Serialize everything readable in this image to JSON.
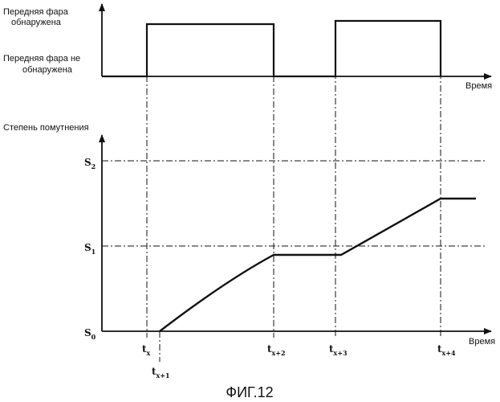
{
  "top_chart": {
    "state_high_label_line1": "Передняя фара",
    "state_high_label_line2": "обнаружена",
    "state_low_label_line1": "Передняя фара не",
    "state_low_label_line2": "обнаружена",
    "x_axis_label": "Время"
  },
  "bottom_chart": {
    "y_axis_label": "Степень помутнения",
    "x_axis_label": "Время",
    "levels": [
      {
        "symbol": "S",
        "sub": "2"
      },
      {
        "symbol": "S",
        "sub": "1"
      },
      {
        "symbol": "S",
        "sub": "0"
      }
    ],
    "time_marks": [
      {
        "symbol": "t",
        "sub": "x"
      },
      {
        "symbol": "t",
        "sub": "x+1"
      },
      {
        "symbol": "t",
        "sub": "x+2"
      },
      {
        "symbol": "t",
        "sub": "x+3"
      },
      {
        "symbol": "t",
        "sub": "x+4"
      }
    ]
  },
  "caption": "ФИГ.12"
}
